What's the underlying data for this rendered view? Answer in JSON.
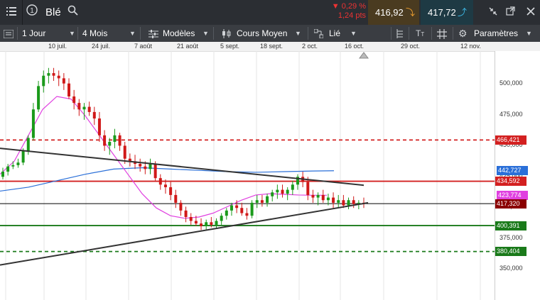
{
  "header": {
    "instrument": "Blé",
    "change_pct": "▼ 0,29 %",
    "change_pts": "1,24 pts",
    "bid": "416,92",
    "ask": "417,72",
    "icons": [
      "menu-icon",
      "info-icon",
      "search-icon",
      "arrow-down-icon",
      "arrow-up-icon",
      "shrink-icon",
      "expand-icon",
      "popout-icon",
      "close-icon"
    ]
  },
  "toolbar": {
    "period": "1 Jour",
    "range": "4 Mois",
    "models": "Modèles",
    "price_type": "Cours Moyen",
    "link": "Lié",
    "settings": "Paramètres"
  },
  "chart_data": {
    "type": "candlestick",
    "x_dates": [
      "10 juil.",
      "24 juil.",
      "7 août",
      "21 août",
      "5 sept.",
      "18 sept.",
      "2 oct.",
      "16 oct.",
      "29 oct.",
      "12 nov."
    ],
    "y_ticks": [
      "500,000",
      "475,000",
      "450,000",
      "425,000",
      "400,000",
      "375,000",
      "350,000"
    ],
    "ylim": [
      343,
      535
    ],
    "price_labels": [
      {
        "value": "466,421",
        "price": 466.421,
        "color": "#d32020"
      },
      {
        "value": "442,727",
        "price": 442.727,
        "color": "#2a6fd8"
      },
      {
        "value": "434,592",
        "price": 434.592,
        "color": "#d32020"
      },
      {
        "value": "423,774",
        "price": 423.774,
        "color": "#e040e0"
      },
      {
        "value": "417,320",
        "price": 417.32,
        "color": "#8b0000"
      },
      {
        "value": "400,391",
        "price": 400.391,
        "color": "#1a7a1a"
      },
      {
        "value": "380,404",
        "price": 380.404,
        "color": "#1a7a1a"
      }
    ],
    "candles": [
      [
        438,
        445,
        436,
        442
      ],
      [
        442,
        448,
        439,
        446
      ],
      [
        446,
        450,
        444,
        447
      ],
      [
        447,
        452,
        445,
        449
      ],
      [
        449,
        460,
        447,
        458
      ],
      [
        458,
        470,
        455,
        468
      ],
      [
        468,
        495,
        466,
        490
      ],
      [
        490,
        512,
        488,
        508
      ],
      [
        508,
        520,
        503,
        516
      ],
      [
        516,
        522,
        510,
        518
      ],
      [
        518,
        522,
        512,
        516
      ],
      [
        516,
        520,
        508,
        514
      ],
      [
        514,
        518,
        505,
        510
      ],
      [
        510,
        514,
        498,
        500
      ],
      [
        500,
        505,
        490,
        495
      ],
      [
        495,
        498,
        485,
        490
      ],
      [
        490,
        495,
        482,
        492
      ],
      [
        492,
        496,
        485,
        488
      ],
      [
        488,
        492,
        478,
        483
      ],
      [
        483,
        488,
        465,
        470
      ],
      [
        470,
        474,
        458,
        462
      ],
      [
        462,
        468,
        455,
        465
      ],
      [
        465,
        475,
        460,
        470
      ],
      [
        470,
        472,
        458,
        462
      ],
      [
        462,
        465,
        448,
        452
      ],
      [
        452,
        456,
        446,
        450
      ],
      [
        450,
        455,
        444,
        448
      ],
      [
        448,
        452,
        442,
        446
      ],
      [
        446,
        450,
        440,
        444
      ],
      [
        444,
        452,
        440,
        448
      ],
      [
        448,
        450,
        435,
        437
      ],
      [
        437,
        440,
        428,
        432
      ],
      [
        432,
        436,
        425,
        430
      ],
      [
        430,
        434,
        420,
        424
      ],
      [
        424,
        428,
        414,
        418
      ],
      [
        418,
        420,
        408,
        412
      ],
      [
        412,
        415,
        403,
        407
      ],
      [
        407,
        410,
        401,
        404
      ],
      [
        404,
        408,
        400,
        402
      ],
      [
        402,
        406,
        397,
        400
      ],
      [
        400,
        405,
        397,
        403
      ],
      [
        403,
        407,
        399,
        401
      ],
      [
        401,
        406,
        398,
        404
      ],
      [
        404,
        410,
        401,
        408
      ],
      [
        408,
        414,
        405,
        412
      ],
      [
        412,
        418,
        408,
        416
      ],
      [
        416,
        420,
        410,
        414
      ],
      [
        414,
        418,
        408,
        410
      ],
      [
        410,
        414,
        405,
        408
      ],
      [
        408,
        420,
        406,
        418
      ],
      [
        418,
        424,
        414,
        420
      ],
      [
        420,
        424,
        415,
        418
      ],
      [
        418,
        425,
        415,
        423
      ],
      [
        423,
        428,
        419,
        426
      ],
      [
        426,
        432,
        421,
        428
      ],
      [
        428,
        432,
        422,
        425
      ],
      [
        425,
        430,
        420,
        428
      ],
      [
        428,
        435,
        424,
        432
      ],
      [
        432,
        440,
        428,
        438
      ],
      [
        438,
        442,
        430,
        434
      ],
      [
        434,
        438,
        420,
        424
      ],
      [
        424,
        428,
        418,
        422
      ],
      [
        422,
        426,
        416,
        424
      ],
      [
        424,
        428,
        418,
        420
      ],
      [
        420,
        425,
        416,
        422
      ],
      [
        422,
        426,
        414,
        418
      ],
      [
        418,
        424,
        414,
        420
      ],
      [
        420,
        424,
        414,
        416
      ],
      [
        416,
        422,
        413,
        420
      ],
      [
        420,
        423,
        414,
        417
      ],
      [
        417,
        420,
        413,
        418
      ],
      [
        418,
        422,
        414,
        417
      ]
    ],
    "sma_long": [
      [
        0,
        427
      ],
      [
        40,
        430
      ],
      [
        80,
        435
      ],
      [
        120,
        440
      ],
      [
        160,
        444
      ],
      [
        200,
        445
      ],
      [
        240,
        444
      ],
      [
        280,
        443
      ],
      [
        320,
        442
      ],
      [
        360,
        441.5
      ],
      [
        400,
        442
      ],
      [
        440,
        442.5
      ],
      [
        470,
        442.7
      ]
    ],
    "sma_short": [
      [
        0,
        440
      ],
      [
        20,
        450
      ],
      [
        40,
        470
      ],
      [
        60,
        490
      ],
      [
        80,
        500
      ],
      [
        100,
        498
      ],
      [
        120,
        485
      ],
      [
        140,
        470
      ],
      [
        160,
        455
      ],
      [
        180,
        440
      ],
      [
        200,
        425
      ],
      [
        220,
        414
      ],
      [
        240,
        408
      ],
      [
        260,
        406
      ],
      [
        280,
        407
      ],
      [
        300,
        410
      ],
      [
        320,
        415
      ],
      [
        340,
        420
      ],
      [
        360,
        424
      ],
      [
        380,
        425
      ],
      [
        400,
        424.5
      ],
      [
        420,
        424
      ],
      [
        440,
        423.8
      ],
      [
        460,
        423.8
      ]
    ],
    "trend_down": [
      [
        0,
        460
      ],
      [
        512,
        431.5
      ]
    ],
    "trend_up": [
      [
        0,
        370
      ],
      [
        518,
        418
      ]
    ],
    "hlines": [
      {
        "price": 466.421,
        "color": "#d32020",
        "dash": true
      },
      {
        "price": 434.592,
        "color": "#d32020",
        "dash": false
      },
      {
        "price": 417.32,
        "color": "#000000",
        "dash": false,
        "thin": true
      },
      {
        "price": 400.391,
        "color": "#1a7a1a",
        "dash": false
      },
      {
        "price": 380.404,
        "color": "#1a7a1a",
        "dash": true
      }
    ]
  }
}
